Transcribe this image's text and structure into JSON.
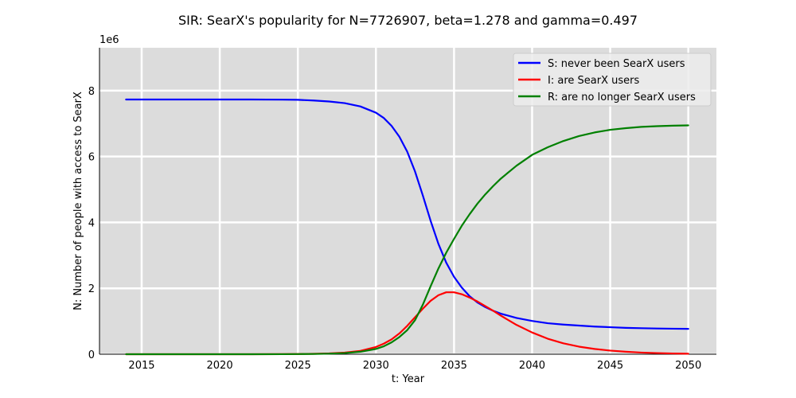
{
  "chart_data": {
    "type": "line",
    "title": "SIR: SearX's popularity for N=7726907, beta=1.278 and gamma=0.497",
    "xlabel": "t: Year",
    "ylabel": "N: Number of people with access to SearX",
    "y_offset_label": "1e6",
    "xlim": [
      2012.3,
      2051.8
    ],
    "ylim": [
      0,
      9.3
    ],
    "y_multiplier": 1000000,
    "grid": true,
    "legend_position": "top-right",
    "x_ticks": [
      {
        "value": 2015,
        "label": "2015"
      },
      {
        "value": 2020,
        "label": "2020"
      },
      {
        "value": 2025,
        "label": "2025"
      },
      {
        "value": 2030,
        "label": "2030"
      },
      {
        "value": 2035,
        "label": "2035"
      },
      {
        "value": 2040,
        "label": "2040"
      },
      {
        "value": 2045,
        "label": "2045"
      },
      {
        "value": 2050,
        "label": "2050"
      }
    ],
    "y_ticks": [
      {
        "value": 0,
        "label": "0"
      },
      {
        "value": 2,
        "label": "2"
      },
      {
        "value": 4,
        "label": "4"
      },
      {
        "value": 6,
        "label": "6"
      },
      {
        "value": 8,
        "label": "8"
      }
    ],
    "x": [
      2014,
      2016,
      2018,
      2020,
      2022,
      2024,
      2025,
      2026,
      2027,
      2028,
      2029,
      2030,
      2030.5,
      2031,
      2031.5,
      2032,
      2032.5,
      2033,
      2033.5,
      2034,
      2034.5,
      2035,
      2035.5,
      2036,
      2036.5,
      2037,
      2037.5,
      2038,
      2039,
      2040,
      2041,
      2042,
      2043,
      2044,
      2045,
      2046,
      2047,
      2048,
      2049,
      2050
    ],
    "series": [
      {
        "name": "S: never been SearX users",
        "color": "#0000ff",
        "values": [
          7.73,
          7.73,
          7.73,
          7.73,
          7.73,
          7.725,
          7.72,
          7.7,
          7.67,
          7.62,
          7.52,
          7.33,
          7.17,
          6.93,
          6.6,
          6.15,
          5.55,
          4.82,
          4.05,
          3.35,
          2.78,
          2.35,
          2.02,
          1.76,
          1.57,
          1.43,
          1.32,
          1.23,
          1.1,
          1.01,
          0.94,
          0.9,
          0.87,
          0.84,
          0.82,
          0.8,
          0.79,
          0.78,
          0.775,
          0.77
        ]
      },
      {
        "name": "I: are SearX users",
        "color": "#ff0000",
        "values": [
          0.0,
          0.0,
          0.0,
          0.0,
          0.0,
          0.003,
          0.006,
          0.012,
          0.025,
          0.05,
          0.1,
          0.22,
          0.32,
          0.45,
          0.63,
          0.86,
          1.12,
          1.38,
          1.62,
          1.79,
          1.88,
          1.88,
          1.82,
          1.72,
          1.6,
          1.46,
          1.32,
          1.17,
          0.89,
          0.66,
          0.47,
          0.33,
          0.23,
          0.16,
          0.11,
          0.075,
          0.05,
          0.035,
          0.023,
          0.015
        ]
      },
      {
        "name": "R: are no longer SearX users",
        "color": "#008000",
        "values": [
          0.0,
          0.0,
          0.0,
          0.0,
          0.0,
          0.002,
          0.004,
          0.008,
          0.017,
          0.035,
          0.075,
          0.16,
          0.24,
          0.36,
          0.52,
          0.73,
          1.03,
          1.5,
          2.06,
          2.6,
          3.08,
          3.5,
          3.9,
          4.25,
          4.57,
          4.85,
          5.1,
          5.33,
          5.72,
          6.05,
          6.28,
          6.47,
          6.62,
          6.73,
          6.81,
          6.86,
          6.9,
          6.92,
          6.935,
          6.945
        ]
      }
    ]
  }
}
